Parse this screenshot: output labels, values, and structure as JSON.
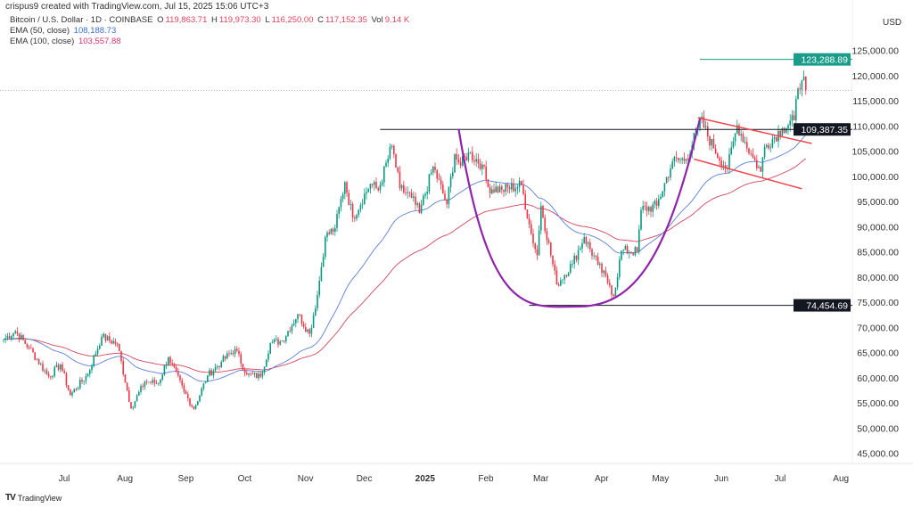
{
  "header": {
    "attribution": "crispus9 created with TradingView.com, Jul 15, 2025 15:06 UTC+3",
    "symbol": "Bitcoin / U.S. Dollar · 1D · COINBASE",
    "o_label": "O",
    "o_value": "119,863.71",
    "h_label": "H",
    "h_value": "119,973.30",
    "l_label": "L",
    "l_value": "116,250.00",
    "c_label": "C",
    "c_value": "117,152.35",
    "vol_label": "Vol",
    "vol_value": "9.14 K",
    "ema50_label": "EMA (50, close)",
    "ema50_value": "108,188.73",
    "ema100_label": "EMA (100, close)",
    "ema100_value": "103,557.88",
    "currency": "USD"
  },
  "footer": {
    "brand": "TradingView",
    "logo_text": "TV"
  },
  "colors": {
    "up": "#089981",
    "down": "#f23645",
    "ema50": "#5b7fd6",
    "ema100": "#d1455e",
    "cup": "#8e24aa",
    "channel": "#f0454f",
    "high_level": "#1a9c8a",
    "level": "#131722"
  },
  "chart_data": {
    "type": "candlestick",
    "interval": "1D",
    "ylim": [
      45000,
      125000
    ],
    "y_scale": "linear",
    "y_ticks": [
      "125,000.00",
      "120,000.00",
      "115,000.00",
      "110,000.00",
      "105,000.00",
      "100,000.00",
      "95,000.00",
      "90,000.00",
      "85,000.00",
      "80,000.00",
      "75,000.00",
      "70,000.00",
      "65,000.00",
      "60,000.00",
      "55,000.00",
      "50,000.00",
      "45,000.00"
    ],
    "y_tick_values": [
      125000,
      120000,
      115000,
      110000,
      105000,
      100000,
      95000,
      90000,
      85000,
      80000,
      75000,
      70000,
      65000,
      60000,
      55000,
      50000,
      45000
    ],
    "x_ticks": [
      {
        "label": "Jul",
        "date": "2024-07-01"
      },
      {
        "label": "Aug",
        "date": "2024-08-01"
      },
      {
        "label": "Sep",
        "date": "2024-09-01"
      },
      {
        "label": "Oct",
        "date": "2024-10-01"
      },
      {
        "label": "Nov",
        "date": "2024-11-01"
      },
      {
        "label": "Dec",
        "date": "2024-12-01"
      },
      {
        "label": "2025",
        "date": "2025-01-01",
        "bold": true
      },
      {
        "label": "Feb",
        "date": "2025-02-01"
      },
      {
        "label": "Mar",
        "date": "2025-03-01"
      },
      {
        "label": "Apr",
        "date": "2025-04-01"
      },
      {
        "label": "May",
        "date": "2025-05-01"
      },
      {
        "label": "Jun",
        "date": "2025-06-01"
      },
      {
        "label": "Jul",
        "date": "2025-07-01"
      },
      {
        "label": "Aug",
        "date": "2025-08-01"
      }
    ],
    "approx_closes": [
      [
        "2024-06-01",
        67700
      ],
      [
        "2024-06-07",
        69300
      ],
      [
        "2024-06-14",
        66000
      ],
      [
        "2024-06-24",
        60300
      ],
      [
        "2024-06-30",
        62700
      ],
      [
        "2024-07-05",
        56600
      ],
      [
        "2024-07-14",
        60800
      ],
      [
        "2024-07-21",
        68200
      ],
      [
        "2024-07-29",
        66800
      ],
      [
        "2024-08-05",
        54000
      ],
      [
        "2024-08-12",
        59300
      ],
      [
        "2024-08-19",
        59000
      ],
      [
        "2024-08-24",
        64200
      ],
      [
        "2024-09-01",
        57300
      ],
      [
        "2024-09-06",
        53900
      ],
      [
        "2024-09-13",
        60500
      ],
      [
        "2024-09-20",
        63200
      ],
      [
        "2024-09-27",
        65800
      ],
      [
        "2024-10-03",
        60700
      ],
      [
        "2024-10-10",
        60300
      ],
      [
        "2024-10-15",
        67000
      ],
      [
        "2024-10-21",
        67400
      ],
      [
        "2024-10-29",
        72700
      ],
      [
        "2024-11-04",
        68800
      ],
      [
        "2024-11-08",
        76500
      ],
      [
        "2024-11-12",
        88000
      ],
      [
        "2024-11-17",
        89800
      ],
      [
        "2024-11-22",
        98900
      ],
      [
        "2024-11-26",
        91900
      ],
      [
        "2024-12-05",
        98600
      ],
      [
        "2024-12-09",
        97300
      ],
      [
        "2024-12-16",
        106100
      ],
      [
        "2024-12-20",
        97700
      ],
      [
        "2024-12-26",
        95800
      ],
      [
        "2024-12-30",
        92800
      ],
      [
        "2025-01-06",
        102000
      ],
      [
        "2025-01-13",
        94500
      ],
      [
        "2025-01-17",
        104500
      ],
      [
        "2025-01-20",
        102200
      ],
      [
        "2025-01-24",
        104800
      ],
      [
        "2025-01-31",
        102400
      ],
      [
        "2025-02-03",
        97900
      ],
      [
        "2025-02-10",
        97400
      ],
      [
        "2025-02-20",
        98300
      ],
      [
        "2025-02-25",
        88700
      ],
      [
        "2025-02-28",
        84400
      ],
      [
        "2025-03-02",
        94200
      ],
      [
        "2025-03-10",
        78600
      ],
      [
        "2025-03-18",
        82700
      ],
      [
        "2025-03-24",
        88000
      ],
      [
        "2025-03-31",
        82500
      ],
      [
        "2025-04-06",
        78400
      ],
      [
        "2025-04-08",
        76300
      ],
      [
        "2025-04-12",
        85300
      ],
      [
        "2025-04-20",
        85100
      ],
      [
        "2025-04-22",
        93400
      ],
      [
        "2025-04-30",
        94200
      ],
      [
        "2025-05-08",
        103000
      ],
      [
        "2025-05-15",
        103500
      ],
      [
        "2025-05-21",
        109600
      ],
      [
        "2025-05-22",
        111600
      ],
      [
        "2025-05-29",
        105600
      ],
      [
        "2025-06-05",
        101500
      ],
      [
        "2025-06-10",
        110200
      ],
      [
        "2025-06-17",
        104500
      ],
      [
        "2025-06-22",
        101000
      ],
      [
        "2025-06-24",
        105900
      ],
      [
        "2025-07-03",
        109600
      ],
      [
        "2025-07-09",
        111200
      ],
      [
        "2025-07-11",
        117500
      ],
      [
        "2025-07-13",
        119100
      ],
      [
        "2025-07-14",
        119864
      ]
    ],
    "last_candle": {
      "date": "2025-07-15",
      "open": 119863.71,
      "high": 119973.3,
      "low": 116250.0,
      "close": 117152.35
    },
    "ema_periods": [
      50,
      100
    ],
    "levels": [
      {
        "name": "resistance",
        "value": 109387.35,
        "label": "109,387.35",
        "from": "2024-12-10"
      },
      {
        "name": "support",
        "value": 74454.69,
        "label": "74,454.69",
        "from": "2025-02-24"
      },
      {
        "name": "high",
        "value": 123288.89,
        "label": "123,288.89",
        "from": "2025-05-22"
      }
    ],
    "current_price": 117152.35,
    "cup": {
      "start": [
        "2025-01-19",
        109500
      ],
      "bottom": [
        "2025-03-20",
        74200
      ],
      "end": [
        "2025-05-22",
        111500
      ]
    },
    "channel": {
      "upper": [
        [
          "2025-05-21",
          111700
        ],
        [
          "2025-07-18",
          106600
        ]
      ],
      "lower": [
        [
          "2025-05-19",
          103500
        ],
        [
          "2025-07-13",
          97600
        ]
      ]
    }
  }
}
